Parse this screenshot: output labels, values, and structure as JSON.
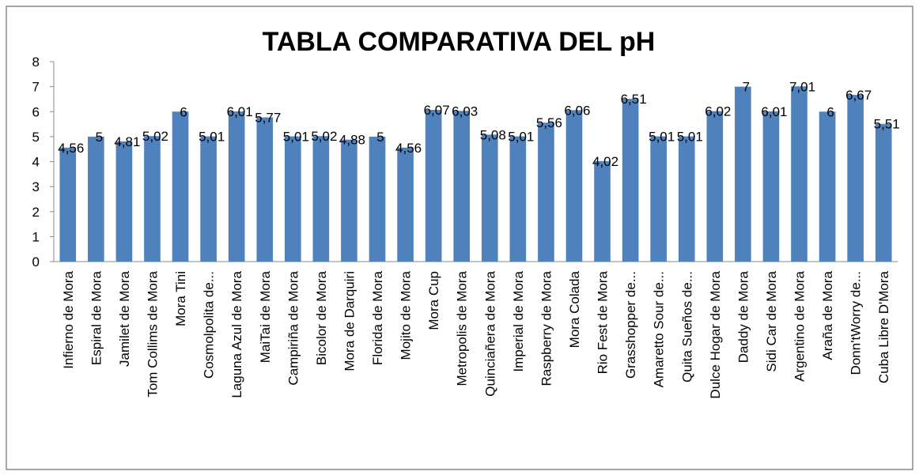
{
  "chart_data": {
    "type": "bar",
    "title": "TABLA COMPARATIVA DEL  pH",
    "categories": [
      "Infierno de Mora",
      "Espiral de Mora",
      "Jamilet de Mora",
      "Tom Collims de Mora",
      "Mora Tini",
      "Cosmolpolita de...",
      "Laguna Azul de Mora",
      "MaiTai de Mora",
      "Campiriña de Mora",
      "Bicolor de Mora",
      "Mora de Darquiri",
      "Florida de Mora",
      "Mojito de Mora",
      "Mora Cup",
      "Metropolis de Mora",
      "Quinciañera de Mora",
      "Imperial de Mora",
      "Raspberry de Mora",
      "Mora Colada",
      "Rio Fest de Mora",
      "Grasshopper de...",
      "Amaretto Sour de...",
      "Quita Sueños de...",
      "Dulce Hogar de Mora",
      "Daddy de Mora",
      "Sidi Car de Mora",
      "Argentino de Mora",
      "Araña de Mora",
      "Donn'tWorry de...",
      "Cuba Libre D'Mora"
    ],
    "values": [
      4.56,
      5,
      4.81,
      5.02,
      6,
      5.01,
      6.01,
      5.77,
      5.01,
      5.02,
      4.88,
      5,
      4.56,
      6.07,
      6.03,
      5.08,
      5.01,
      5.56,
      6.06,
      4.02,
      6.51,
      5.01,
      5.01,
      6.02,
      7,
      6.01,
      7.01,
      6,
      6.67,
      5.51
    ],
    "value_labels": [
      "4,56",
      "5",
      "4,81",
      "5,02",
      "6",
      "5,01",
      "6,01",
      "5,77",
      "5,01",
      "5,02",
      "4,88",
      "5",
      "4,56",
      "6,07",
      "6,03",
      "5,08",
      "5,01",
      "5,56",
      "6,06",
      "4,02",
      "6,51",
      "5,01",
      "5,01",
      "6,02",
      "7",
      "6,01",
      "7,01",
      "6",
      "6,67",
      "5,51"
    ],
    "color": "#4f81bd",
    "ylim": [
      0,
      8
    ],
    "yticks": [
      0,
      1,
      2,
      3,
      4,
      5,
      6,
      7,
      8
    ],
    "grid": false
  }
}
